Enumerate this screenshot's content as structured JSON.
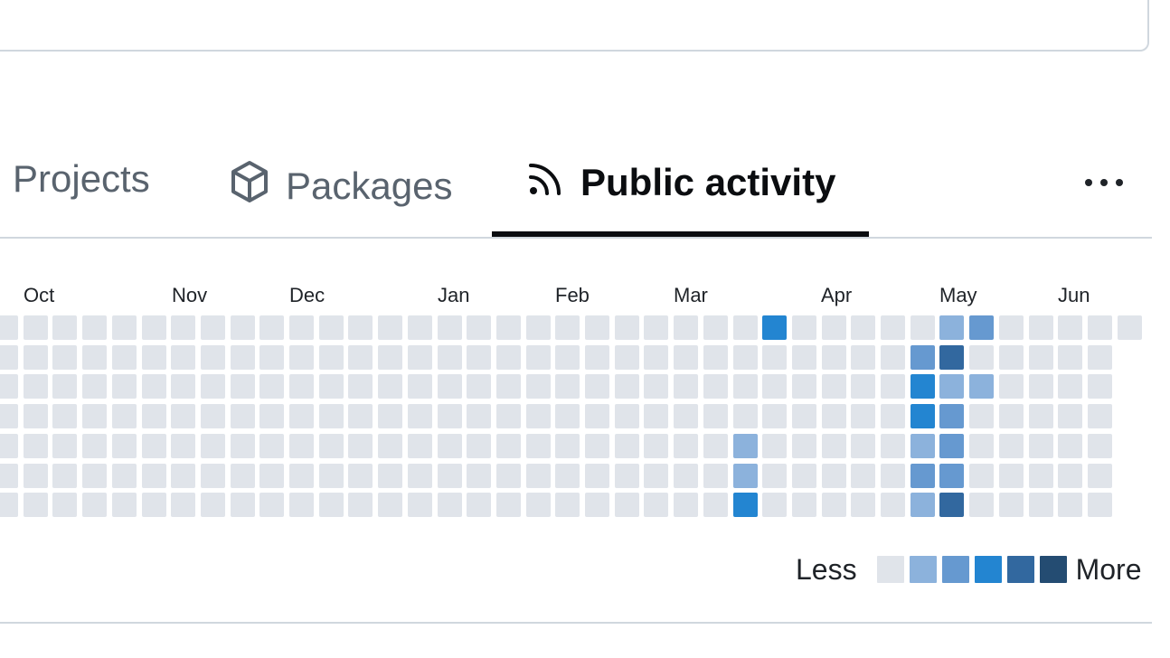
{
  "tabs": {
    "projects_label": "Projects",
    "packages_label": "Packages",
    "activity_label": "Public activity"
  },
  "icons": {
    "packages": "package-icon",
    "activity": "rss-icon",
    "more": "kebab-horizontal-icon"
  },
  "months": [
    "Oct",
    "Nov",
    "Dec",
    "Jan",
    "Feb",
    "Mar",
    "Apr",
    "May",
    "Jun"
  ],
  "contributions": {
    "levels_colors": [
      "#e0e4ea",
      "#8cb2dc",
      "#6699d0",
      "#2385d1",
      "#32689f",
      "#244c72"
    ],
    "active_cells": [
      {
        "week": 26,
        "day": 0,
        "level": 3
      },
      {
        "week": 32,
        "day": 0,
        "level": 1
      },
      {
        "week": 33,
        "day": 0,
        "level": 2
      },
      {
        "week": 31,
        "day": 1,
        "level": 2
      },
      {
        "week": 32,
        "day": 1,
        "level": 4
      },
      {
        "week": 31,
        "day": 2,
        "level": 3
      },
      {
        "week": 32,
        "day": 2,
        "level": 1
      },
      {
        "week": 33,
        "day": 2,
        "level": 1
      },
      {
        "week": 31,
        "day": 3,
        "level": 3
      },
      {
        "week": 32,
        "day": 3,
        "level": 2
      },
      {
        "week": 25,
        "day": 4,
        "level": 1
      },
      {
        "week": 31,
        "day": 4,
        "level": 1
      },
      {
        "week": 32,
        "day": 4,
        "level": 2
      },
      {
        "week": 25,
        "day": 5,
        "level": 1
      },
      {
        "week": 31,
        "day": 5,
        "level": 2
      },
      {
        "week": 32,
        "day": 5,
        "level": 2
      },
      {
        "week": 25,
        "day": 6,
        "level": 3
      },
      {
        "week": 31,
        "day": 6,
        "level": 1
      },
      {
        "week": 32,
        "day": 6,
        "level": 4
      }
    ]
  },
  "legend": {
    "less_label": "Less",
    "more_label": "More"
  }
}
